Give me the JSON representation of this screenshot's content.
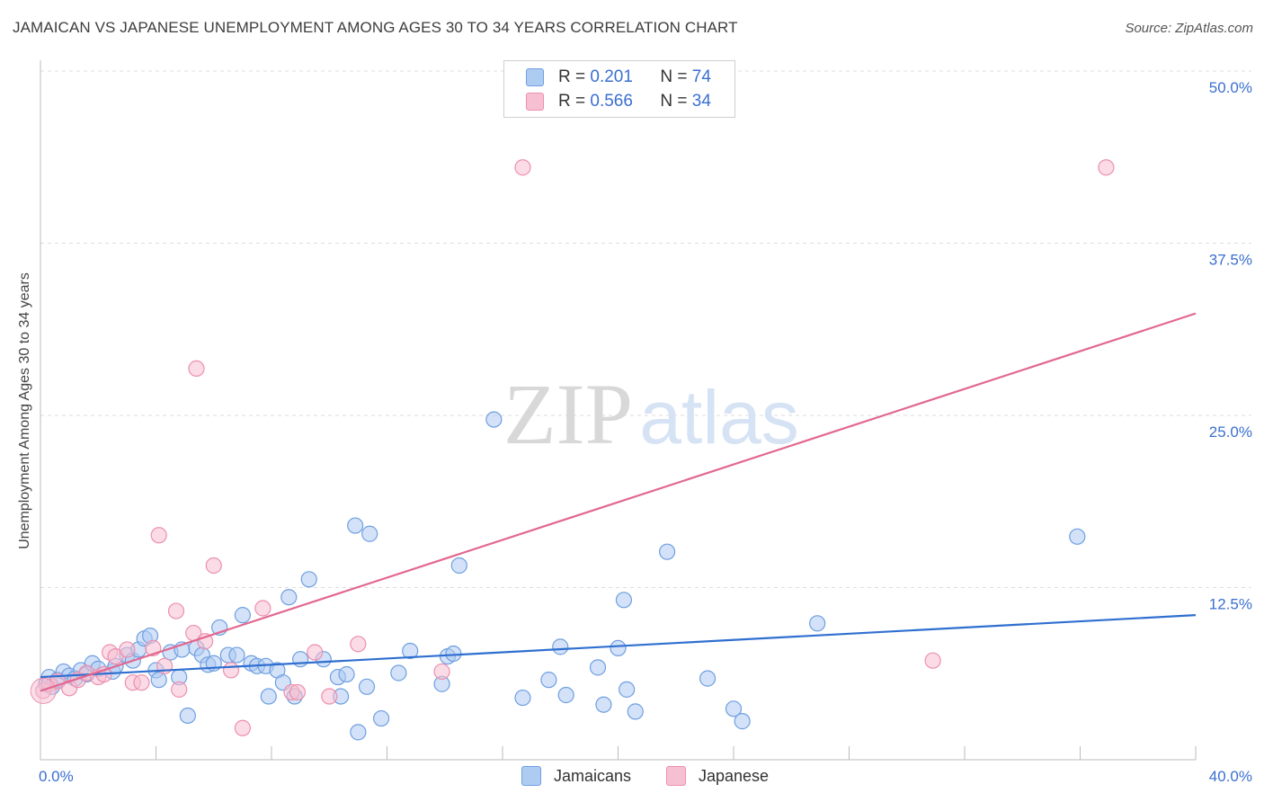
{
  "title": "JAMAICAN VS JAPANESE UNEMPLOYMENT AMONG AGES 30 TO 34 YEARS CORRELATION CHART",
  "source": "Source: ZipAtlas.com",
  "watermark": {
    "zip": "ZIP",
    "atlas": "atlas"
  },
  "colors": {
    "jamaicans_fill": "#aecbf2",
    "jamaicans_stroke": "#6f9fe0",
    "jamaicans_line": "#2f6fd0",
    "japanese_fill": "#f7c0d2",
    "japanese_stroke": "#ec8fae",
    "japanese_line": "#e2688f",
    "axis_text": "#3a6fd0",
    "grid": "#dddddd"
  },
  "legend": {
    "rows": [
      {
        "r_label": "R =",
        "r_value": "0.201",
        "n_label": "N =",
        "n_value": "74"
      },
      {
        "r_label": "R =",
        "r_value": "0.566",
        "n_label": "N =",
        "n_value": "34"
      }
    ]
  },
  "bottom_legend": {
    "jamaicans": "Jamaicans",
    "japanese": "Japanese"
  },
  "chart_data": {
    "type": "scatter",
    "title": "JAMAICAN VS JAPANESE UNEMPLOYMENT AMONG AGES 30 TO 34 YEARS CORRELATION CHART",
    "xlabel": "",
    "ylabel": "Unemployment Among Ages 30 to 34 years",
    "xlim": [
      0,
      40
    ],
    "ylim": [
      0,
      50
    ],
    "x_tick_labels": [
      "0.0%",
      "40.0%"
    ],
    "y_ticks": [
      12.5,
      25.0,
      37.5,
      50.0
    ],
    "y_tick_labels": [
      "12.5%",
      "25.0%",
      "37.5%",
      "50.0%"
    ],
    "grid": true,
    "series": [
      {
        "name": "Jamaicans",
        "r": 0.201,
        "n": 74,
        "trend": {
          "x": [
            0,
            40
          ],
          "y": [
            6.0,
            10.5
          ]
        },
        "points": [
          [
            0.2,
            5.5
          ],
          [
            0.3,
            6.0
          ],
          [
            0.4,
            5.3
          ],
          [
            0.6,
            5.8
          ],
          [
            0.8,
            6.4
          ],
          [
            1.0,
            6.1
          ],
          [
            1.2,
            5.9
          ],
          [
            1.4,
            6.5
          ],
          [
            1.6,
            6.2
          ],
          [
            1.8,
            7.0
          ],
          [
            2.0,
            6.6
          ],
          [
            2.5,
            6.4
          ],
          [
            2.6,
            6.8
          ],
          [
            3.0,
            7.6
          ],
          [
            3.2,
            7.2
          ],
          [
            3.4,
            8.0
          ],
          [
            3.6,
            8.8
          ],
          [
            3.8,
            9.0
          ],
          [
            4.0,
            6.5
          ],
          [
            4.1,
            5.8
          ],
          [
            4.5,
            7.8
          ],
          [
            4.8,
            6.0
          ],
          [
            4.9,
            8.0
          ],
          [
            5.1,
            3.2
          ],
          [
            5.4,
            8.1
          ],
          [
            5.6,
            7.6
          ],
          [
            5.8,
            6.9
          ],
          [
            6.0,
            7.0
          ],
          [
            6.2,
            9.6
          ],
          [
            6.5,
            7.6
          ],
          [
            6.8,
            7.6
          ],
          [
            7.0,
            10.5
          ],
          [
            7.3,
            7.0
          ],
          [
            7.5,
            6.8
          ],
          [
            7.8,
            6.8
          ],
          [
            7.9,
            4.6
          ],
          [
            8.2,
            6.5
          ],
          [
            8.4,
            5.6
          ],
          [
            8.6,
            11.8
          ],
          [
            8.8,
            4.6
          ],
          [
            9.0,
            7.3
          ],
          [
            9.3,
            13.1
          ],
          [
            9.8,
            7.3
          ],
          [
            10.3,
            6.0
          ],
          [
            10.4,
            4.6
          ],
          [
            10.6,
            6.2
          ],
          [
            10.9,
            17.0
          ],
          [
            11.0,
            2.0
          ],
          [
            11.3,
            5.3
          ],
          [
            11.4,
            16.4
          ],
          [
            11.8,
            3.0
          ],
          [
            12.4,
            6.3
          ],
          [
            12.8,
            7.9
          ],
          [
            13.9,
            5.5
          ],
          [
            14.1,
            7.5
          ],
          [
            14.3,
            7.7
          ],
          [
            14.5,
            14.1
          ],
          [
            15.7,
            24.7
          ],
          [
            16.7,
            4.5
          ],
          [
            17.6,
            5.8
          ],
          [
            18.0,
            8.2
          ],
          [
            18.2,
            4.7
          ],
          [
            19.3,
            6.7
          ],
          [
            19.5,
            4.0
          ],
          [
            20.0,
            8.1
          ],
          [
            20.2,
            11.6
          ],
          [
            20.3,
            5.1
          ],
          [
            20.6,
            3.5
          ],
          [
            21.7,
            15.1
          ],
          [
            23.1,
            5.9
          ],
          [
            24.0,
            3.7
          ],
          [
            24.3,
            2.8
          ],
          [
            26.9,
            9.9
          ],
          [
            35.9,
            16.2
          ]
        ]
      },
      {
        "name": "Japanese",
        "r": 0.566,
        "n": 34,
        "trend": {
          "x": [
            0,
            40
          ],
          "y": [
            5.0,
            32.4
          ]
        },
        "points": [
          [
            0.1,
            5.0
          ],
          [
            0.3,
            5.5
          ],
          [
            0.6,
            5.7
          ],
          [
            1.0,
            5.2
          ],
          [
            1.3,
            5.8
          ],
          [
            1.6,
            6.3
          ],
          [
            2.0,
            6.0
          ],
          [
            2.2,
            6.2
          ],
          [
            2.4,
            7.8
          ],
          [
            2.6,
            7.5
          ],
          [
            3.0,
            8.0
          ],
          [
            3.2,
            5.6
          ],
          [
            3.5,
            5.6
          ],
          [
            3.9,
            8.1
          ],
          [
            4.1,
            16.3
          ],
          [
            4.3,
            6.8
          ],
          [
            4.7,
            10.8
          ],
          [
            4.8,
            5.1
          ],
          [
            5.3,
            9.2
          ],
          [
            5.4,
            28.4
          ],
          [
            5.7,
            8.6
          ],
          [
            6.0,
            14.1
          ],
          [
            6.6,
            6.5
          ],
          [
            7.0,
            2.3
          ],
          [
            7.7,
            11.0
          ],
          [
            8.7,
            4.9
          ],
          [
            8.9,
            4.9
          ],
          [
            9.5,
            7.8
          ],
          [
            10.0,
            4.6
          ],
          [
            11.0,
            8.4
          ],
          [
            13.9,
            6.4
          ],
          [
            16.7,
            43.0
          ],
          [
            30.9,
            7.2
          ],
          [
            36.9,
            43.0
          ]
        ]
      }
    ]
  }
}
